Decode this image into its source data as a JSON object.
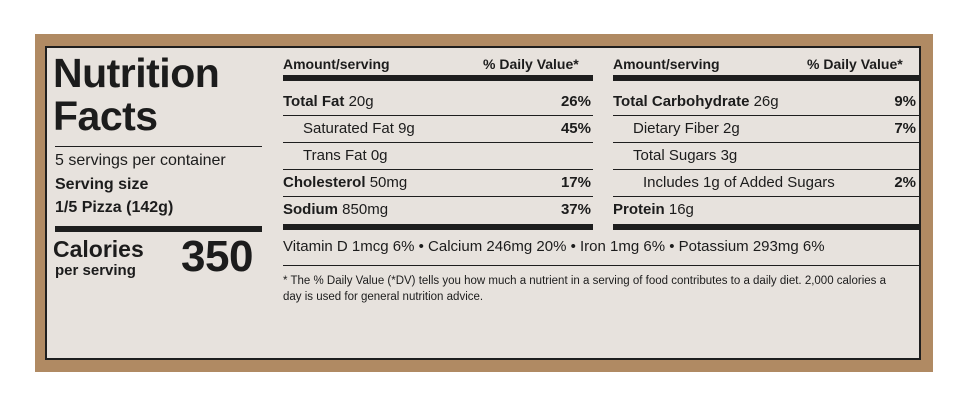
{
  "title_line1": "Nutrition",
  "title_line2": "Facts",
  "servings_per_container": "5 servings per container",
  "serving_size_label": "Serving size",
  "serving_size_value": "1/5 Pizza (142g)",
  "calories_label": "Calories",
  "per_serving_label": "per serving",
  "calories_value": "350",
  "left_table": {
    "header_amount": "Amount/serving",
    "header_dv": "% Daily Value*",
    "rows": [
      {
        "name": "Total Fat",
        "amount": "20g",
        "dv": "26%"
      },
      {
        "name": "Saturated Fat",
        "amount": "9g",
        "dv": "45%"
      },
      {
        "name": "Trans Fat",
        "amount": "0g",
        "dv": ""
      },
      {
        "name": "Cholesterol",
        "amount": "50mg",
        "dv": "17%"
      },
      {
        "name": "Sodium",
        "amount": "850mg",
        "dv": "37%"
      }
    ]
  },
  "right_table": {
    "header_amount": "Amount/serving",
    "header_dv": "% Daily Value*",
    "rows": [
      {
        "name": "Total Carbohydrate",
        "amount": "26g",
        "dv": "9%"
      },
      {
        "name": "Dietary Fiber",
        "amount": "2g",
        "dv": "7%"
      },
      {
        "name": "Total Sugars",
        "amount": "3g",
        "dv": ""
      },
      {
        "name": "Includes 1g of Added Sugars",
        "amount": "",
        "dv": "2%"
      },
      {
        "name": "Protein",
        "amount": "16g",
        "dv": ""
      }
    ]
  },
  "vitamins_line": "Vitamin D 1mcg 6%  •  Calcium 246mg 20%  •  Iron 1mg 6%  •  Potassium 293mg 6%",
  "footnote": "* The % Daily Value (*DV) tells you how much a nutrient in a serving of food contributes to a daily diet. 2,000 calories a day is used for general nutrition advice.",
  "colors": {
    "kraft_border": "#b08a63",
    "label_bg": "#e7e2dd",
    "ink": "#1e1e1e"
  }
}
